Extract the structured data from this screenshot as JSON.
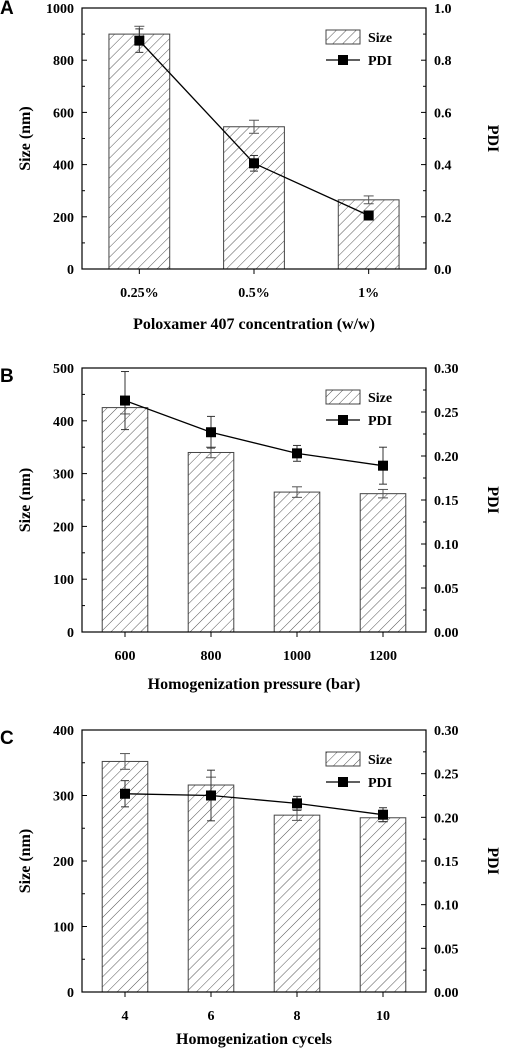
{
  "chart_data": [
    {
      "panel_label": "A",
      "type": "bar",
      "categories": [
        "0.25%",
        "0.5%",
        "1%"
      ],
      "xlabel": "Poloxamer 407 concentration (w/w)",
      "ylabel": "Size (nm)",
      "y2label": "PDI",
      "ylim": [
        0,
        1000
      ],
      "yticks": [
        "0",
        "200",
        "400",
        "600",
        "800",
        "1000"
      ],
      "y2lim": [
        0,
        1.0
      ],
      "y2ticks": [
        "0.0",
        "0.2",
        "0.4",
        "0.6",
        "0.8",
        "1.0"
      ],
      "legend_position": "top-right",
      "series": [
        {
          "name": "Size",
          "kind": "bar",
          "values": [
            900,
            545,
            265
          ],
          "errors": [
            30,
            25,
            15
          ]
        },
        {
          "name": "PDI",
          "kind": "line",
          "values": [
            0.875,
            0.405,
            0.205
          ],
          "errors": [
            0.045,
            0.03,
            0.015
          ]
        }
      ]
    },
    {
      "panel_label": "B",
      "type": "bar",
      "categories": [
        "600",
        "800",
        "1000",
        "1200"
      ],
      "xlabel": "Homogenization pressure (bar)",
      "ylabel": "Size (nm)",
      "y2label": "PDI",
      "ylim": [
        0,
        500
      ],
      "yticks": [
        "0",
        "100",
        "200",
        "300",
        "400",
        "500"
      ],
      "y2lim": [
        0,
        0.3
      ],
      "y2ticks": [
        "0.00",
        "0.05",
        "0.10",
        "0.15",
        "0.20",
        "0.25",
        "0.30"
      ],
      "legend_position": "top-right",
      "series": [
        {
          "name": "Size",
          "kind": "bar",
          "values": [
            425,
            340,
            265,
            262
          ],
          "errors": [
            12,
            10,
            10,
            8
          ]
        },
        {
          "name": "PDI",
          "kind": "line",
          "values": [
            0.263,
            0.227,
            0.203,
            0.189
          ],
          "errors": [
            0.033,
            0.018,
            0.009,
            0.021
          ]
        }
      ]
    },
    {
      "panel_label": "C",
      "type": "bar",
      "categories": [
        "4",
        "6",
        "8",
        "10"
      ],
      "xlabel": "Homogenization cycels",
      "ylabel": "Size (nm)",
      "y2label": "PDI",
      "ylim": [
        0,
        400
      ],
      "yticks": [
        "0",
        "100",
        "200",
        "300",
        "400"
      ],
      "y2lim": [
        0,
        0.3
      ],
      "y2ticks": [
        "0.00",
        "0.05",
        "0.10",
        "0.15",
        "0.20",
        "0.25",
        "0.30"
      ],
      "legend_position": "top-right",
      "series": [
        {
          "name": "Size",
          "kind": "bar",
          "values": [
            352,
            316,
            270,
            266
          ],
          "errors": [
            12,
            12,
            8,
            6
          ]
        },
        {
          "name": "PDI",
          "kind": "line",
          "values": [
            0.227,
            0.225,
            0.216,
            0.203
          ],
          "errors": [
            0.015,
            0.029,
            0.008,
            0.008
          ]
        }
      ]
    }
  ]
}
